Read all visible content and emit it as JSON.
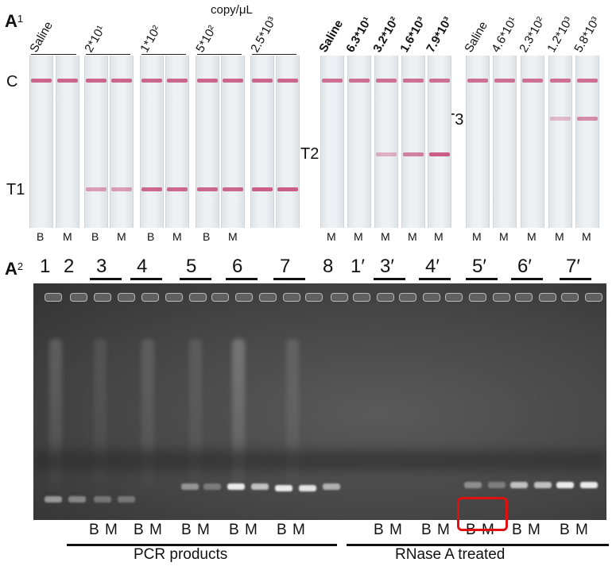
{
  "panel_a1": {
    "letter": "A",
    "index": "1"
  },
  "panel_a2": {
    "letter": "A",
    "index": "2"
  },
  "units": "copy/μL",
  "left_groups": [
    {
      "label": "Saline",
      "lanes": [
        "B",
        "M"
      ]
    },
    {
      "label": "2*10¹",
      "lanes": [
        "B",
        "M"
      ]
    },
    {
      "label": "1*10²",
      "lanes": [
        "B",
        "M"
      ]
    },
    {
      "label": "5*10²",
      "lanes": [
        "B",
        "M"
      ]
    },
    {
      "label": "2.5*10³",
      "lanes": [
        "",
        ""
      ]
    }
  ],
  "middle_labels": [
    "Saline",
    "6.3*10¹",
    "3.2*10²",
    "1.6*10³",
    "7.9*10³"
  ],
  "right_labels": [
    "Saline",
    "4.6*10¹",
    "2.3*10²",
    "1.2*10³",
    "5.8*10³"
  ],
  "middle_lane_letter": "M",
  "line_labels": {
    "c": "C",
    "t1": "T1",
    "t2": "T2",
    "t3": "T3"
  },
  "gel": {
    "lane_numbers": [
      "1",
      "2",
      "3",
      "4",
      "5",
      "6",
      "7",
      "8",
      "1′",
      "3′",
      "4′",
      "5′",
      "6′",
      "7′"
    ],
    "bm": [
      "B",
      "M"
    ],
    "pcr_label": "PCR products",
    "rnase_label": "RNase A treated"
  },
  "colors": {
    "band_pink": "#c23a6a",
    "highlight_box": "#e01010"
  }
}
